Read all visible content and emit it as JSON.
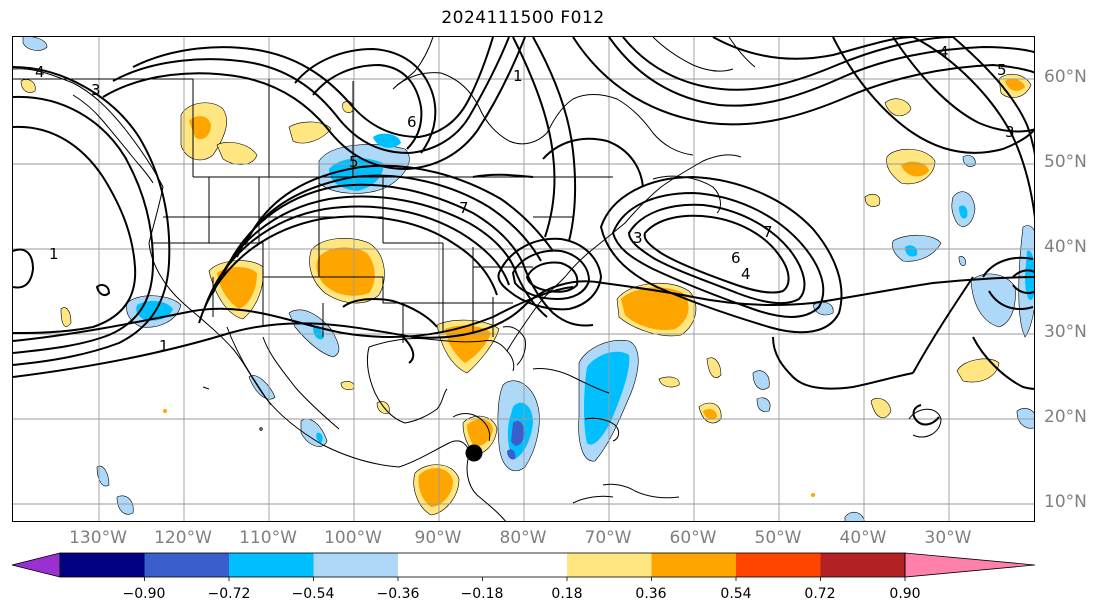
{
  "title": "2024111500 F012",
  "lat_labels": [
    "60°N",
    "50°N",
    "40°N",
    "30°N",
    "20°N",
    "10°N"
  ],
  "lon_labels": [
    "130°W",
    "120°W",
    "110°W",
    "100°W",
    "90°W",
    "80°W",
    "70°W",
    "60°W",
    "50°W",
    "40°W",
    "30°W"
  ],
  "contour_labels": [
    "1",
    "1",
    "1",
    "3",
    "3",
    "4",
    "4",
    "5",
    "6",
    "6",
    "7",
    "7",
    "5",
    "4",
    "3"
  ],
  "colorbar": {
    "ticks": [
      "−0.90",
      "−0.72",
      "−0.54",
      "−0.36",
      "−0.18",
      "0.18",
      "0.36",
      "0.54",
      "0.72",
      "0.90"
    ],
    "colors": {
      "under": "#9b30d0",
      "neg_090": "#000080",
      "neg_072": "#3a5fcd",
      "neg_054": "#00bfff",
      "neg_036": "#add8f8",
      "neutral": "#ffffff",
      "pos_018": "#ffe680",
      "pos_036": "#ffa500",
      "pos_054": "#ff4500",
      "pos_072": "#b22222",
      "over": "#ff80aa"
    }
  },
  "storm_marker": {
    "label": ""
  }
}
